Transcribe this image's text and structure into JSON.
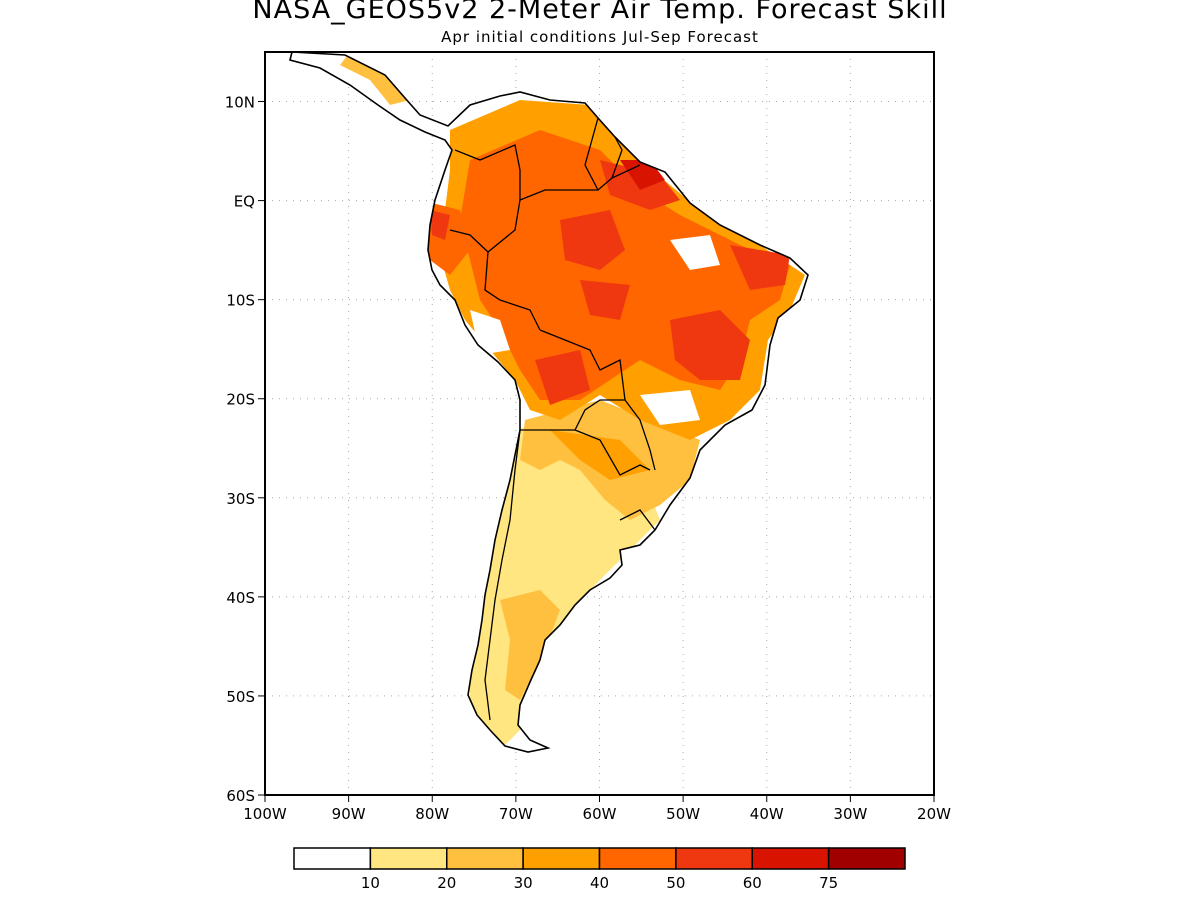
{
  "title": "NASA_GEOS5v2 2-Meter Air Temp. Forecast Skill",
  "subtitle": "Apr initial conditions  Jul-Sep Forecast",
  "map": {
    "lon_range": [
      -100,
      -20
    ],
    "lat_range": [
      -60,
      15
    ],
    "lat_ticks": [
      {
        "value": 10,
        "label": "10N"
      },
      {
        "value": 0,
        "label": "EQ"
      },
      {
        "value": -10,
        "label": "10S"
      },
      {
        "value": -20,
        "label": "20S"
      },
      {
        "value": -30,
        "label": "30S"
      },
      {
        "value": -40,
        "label": "40S"
      },
      {
        "value": -50,
        "label": "50S"
      },
      {
        "value": -60,
        "label": "60S"
      }
    ],
    "lon_ticks": [
      {
        "value": -100,
        "label": "100W"
      },
      {
        "value": -90,
        "label": "90W"
      },
      {
        "value": -80,
        "label": "80W"
      },
      {
        "value": -70,
        "label": "70W"
      },
      {
        "value": -60,
        "label": "60W"
      },
      {
        "value": -50,
        "label": "50W"
      },
      {
        "value": -40,
        "label": "40W"
      },
      {
        "value": -30,
        "label": "30W"
      },
      {
        "value": -20,
        "label": "20W"
      }
    ],
    "gridlines": true
  },
  "legend": {
    "colors": [
      "#ffffff",
      "#ffe680",
      "#ffc040",
      "#ffa000",
      "#ff6600",
      "#f03810",
      "#d81400",
      "#a00000"
    ],
    "labels": [
      "10",
      "20",
      "30",
      "40",
      "50",
      "60",
      "75"
    ]
  }
}
